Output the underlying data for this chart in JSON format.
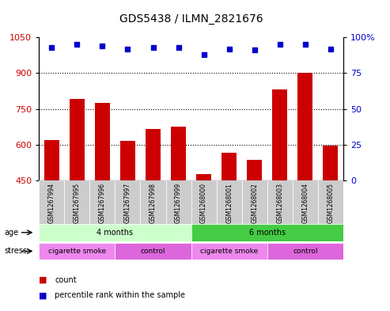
{
  "title": "GDS5438 / ILMN_2821676",
  "samples": [
    "GSM1267994",
    "GSM1267995",
    "GSM1267996",
    "GSM1267997",
    "GSM1267998",
    "GSM1267999",
    "GSM1268000",
    "GSM1268001",
    "GSM1268002",
    "GSM1268003",
    "GSM1268004",
    "GSM1268005"
  ],
  "counts": [
    620,
    790,
    775,
    615,
    665,
    675,
    475,
    565,
    535,
    830,
    900,
    595
  ],
  "percentile_ranks": [
    93,
    95,
    94,
    92,
    93,
    93,
    88,
    92,
    91,
    95,
    95,
    92
  ],
  "ylim_left": [
    450,
    1050
  ],
  "ylim_right": [
    0,
    100
  ],
  "yticks_left": [
    450,
    600,
    750,
    900,
    1050
  ],
  "yticks_right": [
    0,
    25,
    50,
    75,
    100
  ],
  "bar_color": "#cc0000",
  "dot_color": "#0000cc",
  "background_color": "#ffffff",
  "grid_color": "#000000",
  "age_groups": [
    {
      "label": "4 months",
      "start": 0,
      "end": 6,
      "color": "#ccffcc"
    },
    {
      "label": "6 months",
      "start": 6,
      "end": 12,
      "color": "#44cc44"
    }
  ],
  "stress_groups": [
    {
      "label": "cigarette smoke",
      "start": 0,
      "end": 3,
      "color": "#ee88ee"
    },
    {
      "label": "control",
      "start": 3,
      "end": 6,
      "color": "#dd66dd"
    },
    {
      "label": "cigarette smoke",
      "start": 6,
      "end": 9,
      "color": "#ee88ee"
    },
    {
      "label": "control",
      "start": 9,
      "end": 12,
      "color": "#dd66dd"
    }
  ],
  "legend_count_color": "#cc0000",
  "legend_dot_color": "#0000cc",
  "xticklabel_bgcolor": "#cccccc"
}
